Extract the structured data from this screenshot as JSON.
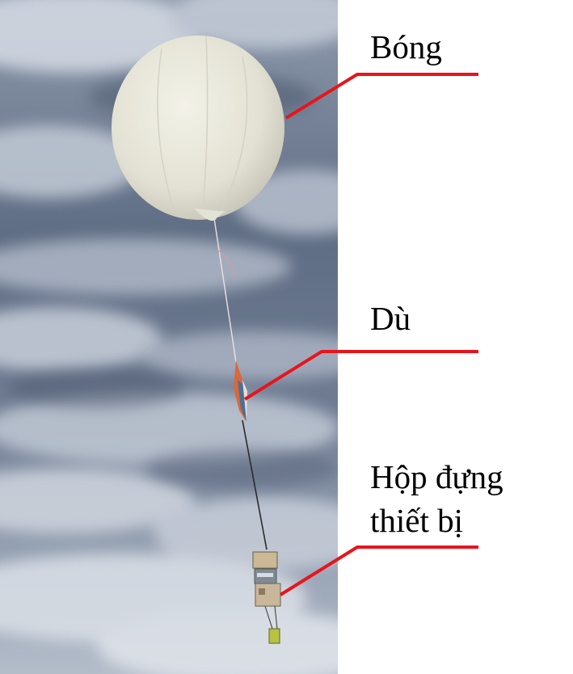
{
  "labels": {
    "balloon": "Bóng",
    "parachute": "Dù",
    "equipment_box_line1": "Hộp đựng",
    "equipment_box_line2": "thiết bị"
  },
  "colors": {
    "leader_line": "#e8141c",
    "sky_light": "#c9d1dc",
    "sky_dark": "#4f5d73",
    "balloon": "#e9e8dc",
    "parachute": "#d9683c",
    "payload": "#c9b89a"
  }
}
